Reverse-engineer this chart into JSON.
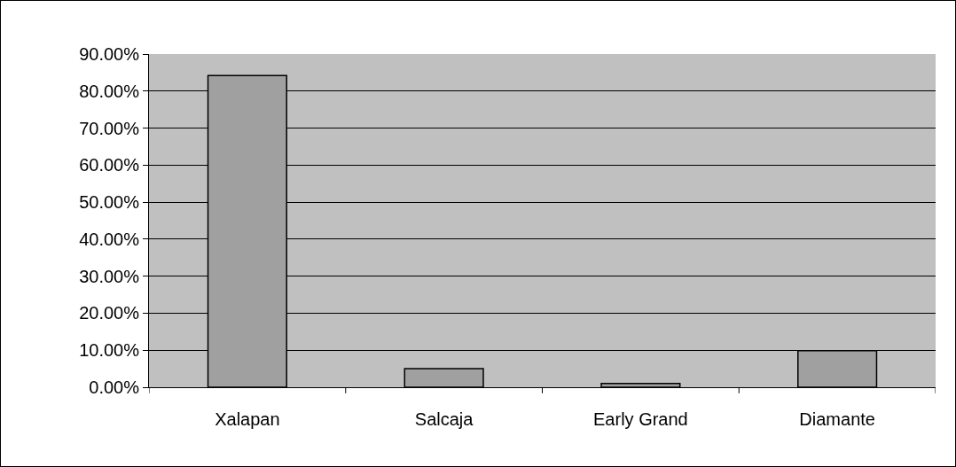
{
  "chart_data": {
    "type": "bar",
    "categories": [
      "Xalapan",
      "Salcaja",
      "Early Grand",
      "Diamante"
    ],
    "values": [
      84.2,
      5,
      1,
      9.9
    ],
    "color": "#a0a0a0",
    "ylim": [
      0,
      90
    ],
    "yticks": [
      {
        "value": 0,
        "label": "0.00%"
      },
      {
        "value": 10,
        "label": "10.00%"
      },
      {
        "value": 20,
        "label": "20.00%"
      },
      {
        "value": 30,
        "label": "30.00%"
      },
      {
        "value": 40,
        "label": "40.00%"
      },
      {
        "value": 50,
        "label": "50.00%"
      },
      {
        "value": 60,
        "label": "60.00%"
      },
      {
        "value": 70,
        "label": "70.00%"
      },
      {
        "value": 80,
        "label": "80.00%"
      },
      {
        "value": 90,
        "label": "90.00%"
      }
    ],
    "grid": "y"
  }
}
